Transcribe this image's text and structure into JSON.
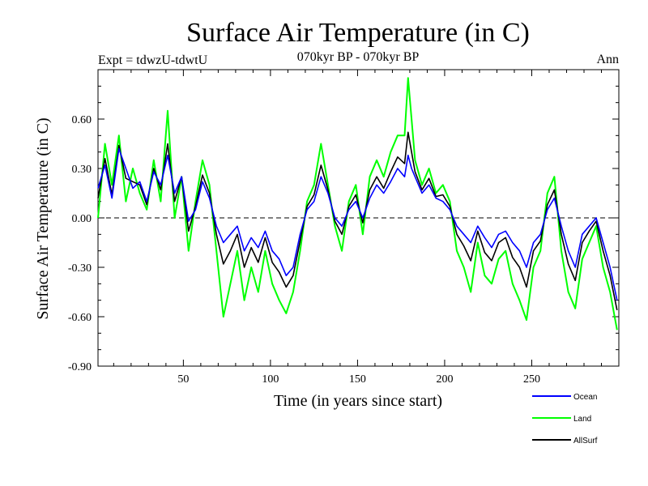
{
  "chart_data": {
    "type": "line",
    "title": "Surface Air Temperature (in C)",
    "subtitle": "070kyr BP - 070kyr BP",
    "left_label": "Expt = tdwzU-tdwtU",
    "right_label": "Ann",
    "xlabel": "Time (in years since start)",
    "ylabel": "Surface Air Temperature (in C)",
    "xlim": [
      1,
      300
    ],
    "ylim": [
      -0.9,
      0.9
    ],
    "x_ticks": [
      50,
      100,
      150,
      200,
      250
    ],
    "x_tick_labels": [
      "50",
      "100",
      "150",
      "200",
      "250"
    ],
    "y_ticks": [
      -0.9,
      -0.6,
      -0.3,
      0.0,
      0.3,
      0.6
    ],
    "y_tick_labels": [
      "-0.90",
      "-0.60",
      "-0.30",
      "0.00",
      "0.30",
      "0.60"
    ],
    "zero_line": true,
    "grid": false,
    "legend_position": "bottom-right",
    "x": [
      1,
      5,
      9,
      13,
      17,
      21,
      25,
      29,
      33,
      37,
      41,
      45,
      49,
      53,
      57,
      61,
      65,
      69,
      73,
      77,
      81,
      85,
      89,
      93,
      97,
      101,
      105,
      109,
      113,
      117,
      121,
      125,
      129,
      133,
      137,
      141,
      145,
      149,
      153,
      157,
      161,
      165,
      169,
      173,
      177,
      179,
      181,
      183,
      187,
      191,
      195,
      199,
      203,
      207,
      211,
      215,
      219,
      223,
      227,
      231,
      235,
      239,
      243,
      247,
      251,
      255,
      259,
      263,
      267,
      271,
      275,
      279,
      283,
      287,
      291,
      295,
      299
    ],
    "series": [
      {
        "name": "Ocean",
        "color": "#0000ff",
        "values": [
          0.18,
          0.32,
          0.12,
          0.42,
          0.3,
          0.18,
          0.22,
          0.1,
          0.28,
          0.2,
          0.38,
          0.15,
          0.25,
          -0.02,
          0.05,
          0.22,
          0.12,
          -0.05,
          -0.15,
          -0.1,
          -0.05,
          -0.2,
          -0.12,
          -0.18,
          -0.08,
          -0.2,
          -0.25,
          -0.35,
          -0.3,
          -0.1,
          0.05,
          0.1,
          0.25,
          0.15,
          0.0,
          -0.05,
          0.05,
          0.1,
          0.0,
          0.12,
          0.2,
          0.15,
          0.22,
          0.3,
          0.25,
          0.38,
          0.3,
          0.25,
          0.15,
          0.2,
          0.12,
          0.1,
          0.05,
          -0.05,
          -0.1,
          -0.15,
          -0.05,
          -0.12,
          -0.18,
          -0.1,
          -0.08,
          -0.15,
          -0.2,
          -0.3,
          -0.15,
          -0.1,
          0.05,
          0.12,
          -0.05,
          -0.2,
          -0.3,
          -0.1,
          -0.05,
          0.0,
          -0.15,
          -0.3,
          -0.5
        ]
      },
      {
        "name": "Land",
        "color": "#00ff00",
        "values": [
          0.0,
          0.45,
          0.2,
          0.5,
          0.1,
          0.3,
          0.15,
          0.05,
          0.35,
          0.1,
          0.65,
          0.0,
          0.25,
          -0.2,
          0.1,
          0.35,
          0.2,
          -0.2,
          -0.6,
          -0.4,
          -0.2,
          -0.5,
          -0.3,
          -0.45,
          -0.2,
          -0.4,
          -0.5,
          -0.58,
          -0.45,
          -0.2,
          0.1,
          0.2,
          0.45,
          0.2,
          -0.05,
          -0.2,
          0.1,
          0.2,
          -0.1,
          0.25,
          0.35,
          0.25,
          0.4,
          0.5,
          0.5,
          0.85,
          0.6,
          0.35,
          0.2,
          0.3,
          0.15,
          0.2,
          0.1,
          -0.2,
          -0.3,
          -0.45,
          -0.15,
          -0.35,
          -0.4,
          -0.25,
          -0.2,
          -0.4,
          -0.5,
          -0.62,
          -0.3,
          -0.2,
          0.15,
          0.25,
          -0.2,
          -0.45,
          -0.55,
          -0.25,
          -0.15,
          -0.05,
          -0.3,
          -0.45,
          -0.68
        ]
      },
      {
        "name": "AllSurf",
        "color": "#000000",
        "values": [
          0.12,
          0.36,
          0.14,
          0.44,
          0.24,
          0.22,
          0.2,
          0.08,
          0.3,
          0.17,
          0.45,
          0.1,
          0.25,
          -0.08,
          0.07,
          0.26,
          0.15,
          -0.1,
          -0.28,
          -0.2,
          -0.1,
          -0.3,
          -0.18,
          -0.27,
          -0.12,
          -0.27,
          -0.33,
          -0.42,
          -0.35,
          -0.14,
          0.07,
          0.14,
          0.32,
          0.17,
          -0.02,
          -0.1,
          0.07,
          0.14,
          -0.03,
          0.17,
          0.25,
          0.18,
          0.28,
          0.37,
          0.33,
          0.52,
          0.4,
          0.28,
          0.17,
          0.24,
          0.13,
          0.14,
          0.07,
          -0.1,
          -0.17,
          -0.26,
          -0.08,
          -0.21,
          -0.26,
          -0.15,
          -0.12,
          -0.24,
          -0.3,
          -0.42,
          -0.2,
          -0.14,
          0.08,
          0.17,
          -0.1,
          -0.28,
          -0.38,
          -0.15,
          -0.08,
          -0.02,
          -0.2,
          -0.35,
          -0.56
        ]
      }
    ]
  }
}
